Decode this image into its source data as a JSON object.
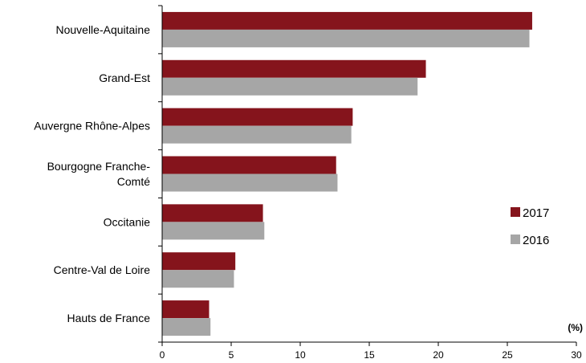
{
  "chart_data": {
    "type": "bar",
    "orientation": "horizontal",
    "categories": [
      [
        "Nouvelle-Aquitaine"
      ],
      [
        "Grand-Est"
      ],
      [
        "Auvergne Rhône-Alpes"
      ],
      [
        "Bourgogne Franche-",
        "Comté"
      ],
      [
        "Occitanie"
      ],
      [
        "Centre-Val de Loire"
      ],
      [
        "Hauts de France"
      ]
    ],
    "series": [
      {
        "name": "2017",
        "color": "#85141c",
        "values": [
          26.8,
          19.1,
          13.8,
          12.6,
          7.3,
          5.3,
          3.4
        ]
      },
      {
        "name": "2016",
        "color": "#a6a6a6",
        "values": [
          26.6,
          18.5,
          13.7,
          12.7,
          7.4,
          5.2,
          3.5
        ]
      }
    ],
    "xlim": [
      0,
      30
    ],
    "xticks": [
      0,
      5,
      10,
      15,
      20,
      25,
      30
    ],
    "unit_label": "(%)",
    "legend_position": "right",
    "grid": false
  }
}
